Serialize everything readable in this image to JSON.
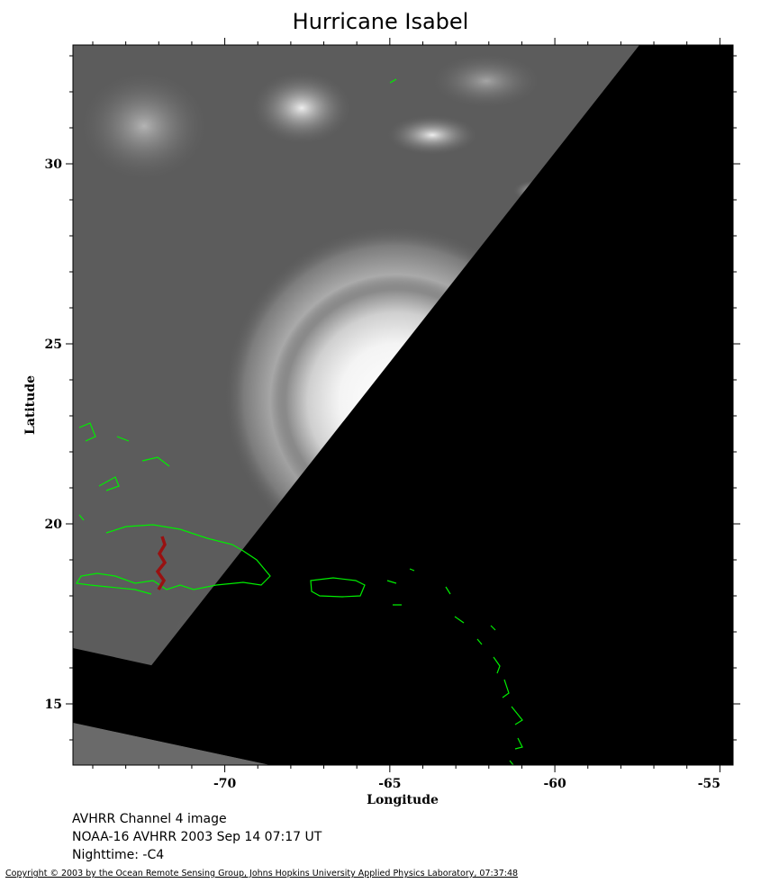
{
  "title": "Hurricane Isabel",
  "axes": {
    "xlabel": "Longitude",
    "ylabel": "Latitude",
    "x_ticks": [
      "-70",
      "-65",
      "-60",
      "-55"
    ],
    "y_ticks": [
      "30",
      "25",
      "20",
      "15"
    ],
    "xlim": [
      -74.6,
      -54.6
    ],
    "ylim": [
      13.3,
      33.3
    ]
  },
  "info_lines": [
    "AVHRR Channel 4 image",
    "NOAA-16 AVHRR 2003 Sep 14 07:17 UT",
    "Nighttime: -C4"
  ],
  "copyright": "Copyright © 2003 by the Ocean Remote Sensing Group, Johns Hopkins University Applied Physics Laboratory, 07:37:48",
  "colors": {
    "coastline": "#00ee00",
    "border": "#991111",
    "no_data": "#000000",
    "cloud": "#ffffff",
    "ocean": "#5a5a5a"
  },
  "features": {
    "hurricane_eye": {
      "lon": -64.9,
      "lat": 23.3
    }
  }
}
